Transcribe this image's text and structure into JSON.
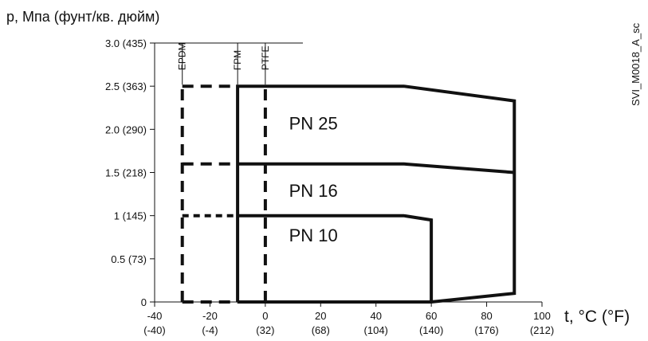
{
  "chart_data": {
    "type": "line",
    "ylabel": "p, Мпа (фунт/кв. дюйм)",
    "xlabel": "t, °C (°F)",
    "watermark": "SVI_M0018_A_sc",
    "xlim": [
      -40,
      100
    ],
    "ylim": [
      0,
      3.0
    ],
    "x_ticks": [
      {
        "value": -40,
        "label": "-40",
        "sub": "(-40)"
      },
      {
        "value": -20,
        "label": "-20",
        "sub": "(-4)"
      },
      {
        "value": 0,
        "label": "0",
        "sub": "(32)"
      },
      {
        "value": 20,
        "label": "20",
        "sub": "(68)"
      },
      {
        "value": 40,
        "label": "40",
        "sub": "(104)"
      },
      {
        "value": 60,
        "label": "60",
        "sub": "(140)"
      },
      {
        "value": 80,
        "label": "80",
        "sub": "(176)"
      },
      {
        "value": 100,
        "label": "100",
        "sub": "(212)"
      }
    ],
    "y_ticks": [
      {
        "value": 3.0,
        "label": "3.0 (435)"
      },
      {
        "value": 2.5,
        "label": "2.5 (363)"
      },
      {
        "value": 2.0,
        "label": "2.0 (290)"
      },
      {
        "value": 1.5,
        "label": "1.5 (218)"
      },
      {
        "value": 1.0,
        "label": "1 (145)"
      },
      {
        "value": 0.5,
        "label": "0.5 (73)"
      },
      {
        "value": 0,
        "label": "0"
      }
    ],
    "materials": [
      {
        "name": "EPDM",
        "x": -30
      },
      {
        "name": "FPM",
        "x": -10
      },
      {
        "name": "PTFE",
        "x": 0
      }
    ],
    "series": [
      {
        "name": "PN 25",
        "x": [
          -30,
          50,
          90
        ],
        "y": [
          2.5,
          2.5,
          2.33
        ]
      },
      {
        "name": "PN 16",
        "x": [
          -30,
          50,
          90
        ],
        "y": [
          1.6,
          1.6,
          1.5
        ]
      },
      {
        "name": "PN 10",
        "x": [
          -30,
          50,
          60
        ],
        "y": [
          1.0,
          1.0,
          0.95
        ]
      }
    ],
    "solid_outlines": [
      {
        "x": [
          -10,
          -10,
          50,
          90,
          90,
          60,
          -10
        ],
        "y": [
          0,
          2.5,
          2.5,
          2.33,
          0.1,
          0,
          0
        ]
      },
      {
        "x": [
          -10,
          50,
          90
        ],
        "y": [
          1.6,
          1.6,
          1.5
        ]
      },
      {
        "x": [
          -10,
          50,
          60,
          60
        ],
        "y": [
          1.0,
          1.0,
          0.95,
          0
        ]
      }
    ],
    "dashed_segments": [
      {
        "x": [
          -30,
          -30
        ],
        "y": [
          0,
          2.5
        ],
        "style": "long"
      },
      {
        "x": [
          -30,
          -10
        ],
        "y": [
          2.5,
          2.5
        ],
        "style": "long"
      },
      {
        "x": [
          -30,
          -10
        ],
        "y": [
          1.6,
          1.6
        ],
        "style": "long"
      },
      {
        "x": [
          -30,
          -10
        ],
        "y": [
          1.0,
          1.0
        ],
        "style": "short"
      },
      {
        "x": [
          -30,
          -10
        ],
        "y": [
          0,
          0
        ],
        "style": "long"
      },
      {
        "x": [
          0,
          0
        ],
        "y": [
          0,
          2.5
        ],
        "style": "long"
      }
    ],
    "grid": false,
    "legend": "none"
  }
}
